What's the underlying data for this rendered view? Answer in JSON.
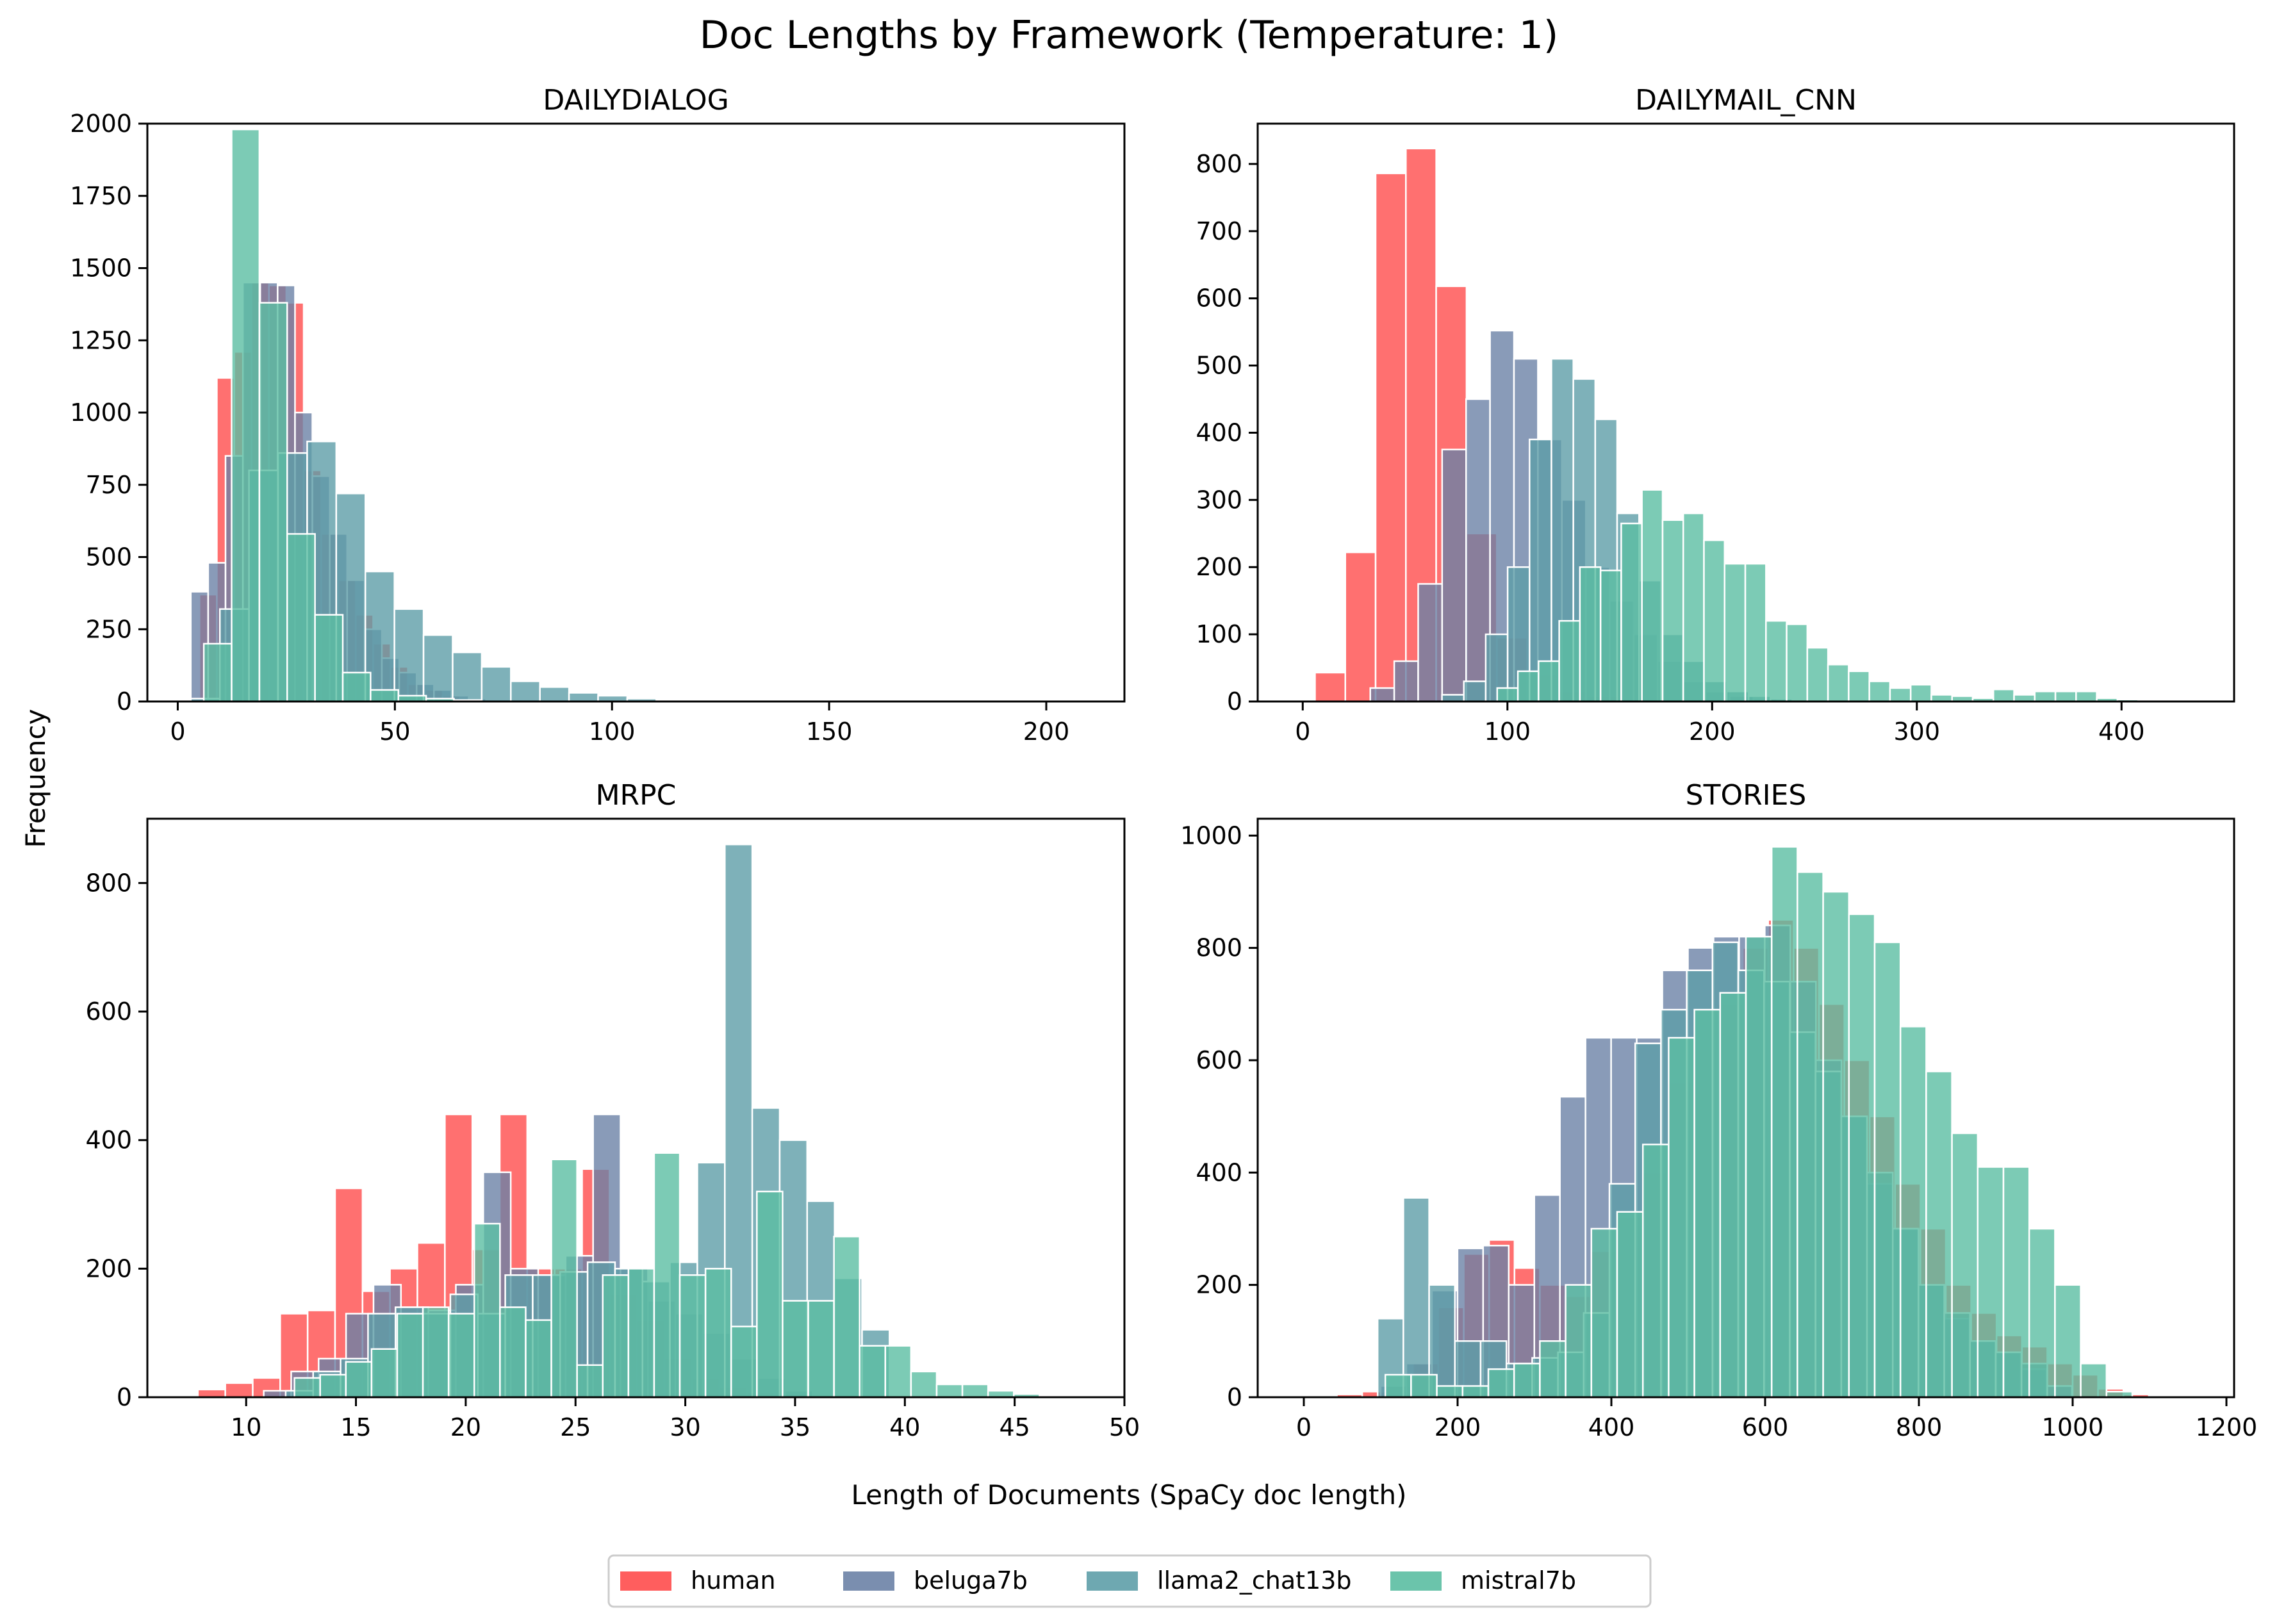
{
  "figure": {
    "title": "Doc Lengths by Framework (Temperature: 1)",
    "xlabel": "Length of Documents (SpaCy doc length)",
    "ylabel": "Frequency",
    "legend_position": "bottom-center"
  },
  "legend": [
    {
      "name": "human",
      "color": "#ff4c4c"
    },
    {
      "name": "beluga7b",
      "color": "#6b82a6"
    },
    {
      "name": "llama2_chat13b",
      "color": "#5e9ea8"
    },
    {
      "name": "mistral7b",
      "color": "#5bbea2"
    }
  ],
  "chart_data": [
    {
      "type": "bar",
      "title": "DAILYDIALOG",
      "xlim": [
        -7,
        218
      ],
      "ylim": [
        0,
        2000
      ],
      "xticks": [
        0,
        50,
        100,
        150,
        200
      ],
      "yticks": [
        0,
        250,
        500,
        750,
        1000,
        1250,
        1500,
        1750,
        2000
      ],
      "grid": false,
      "series": [
        {
          "name": "human",
          "color": "#ff4c4c",
          "x0": 1,
          "width": 4,
          "values": [
            0,
            370,
            1120,
            1210,
            1450,
            1440,
            1380,
            800,
            580,
            420,
            300,
            200,
            120,
            60,
            40,
            20,
            10,
            5
          ]
        },
        {
          "name": "beluga7b",
          "color": "#6b82a6",
          "x0": 3,
          "width": 4,
          "values": [
            380,
            480,
            850,
            1450,
            1450,
            1440,
            1000,
            780,
            580,
            420,
            250,
            150,
            100,
            60,
            40,
            20,
            10,
            5,
            3
          ]
        },
        {
          "name": "llama2_chat13b",
          "color": "#5e9ea8",
          "x0": 3,
          "width": 6.7,
          "values": [
            10,
            320,
            800,
            860,
            900,
            720,
            450,
            320,
            230,
            170,
            120,
            70,
            50,
            30,
            20,
            10
          ]
        },
        {
          "name": "mistral7b",
          "color": "#5bbea2",
          "x0": 6,
          "width": 6.4,
          "values": [
            200,
            1980,
            1380,
            580,
            300,
            100,
            40,
            20,
            10,
            5
          ]
        }
      ]
    },
    {
      "type": "bar",
      "title": "DAILYMAIL_CNN",
      "xlim": [
        -22,
        455
      ],
      "ylim": [
        0,
        860
      ],
      "xticks": [
        0,
        100,
        200,
        300,
        400
      ],
      "yticks": [
        0,
        100,
        200,
        300,
        400,
        500,
        600,
        700,
        800
      ],
      "grid": false,
      "series": [
        {
          "name": "human",
          "color": "#ff4c4c",
          "x0": 6,
          "width": 14.8,
          "values": [
            43,
            222,
            786,
            823,
            618,
            250,
            95,
            40,
            15,
            8,
            4,
            2
          ]
        },
        {
          "name": "beluga7b",
          "color": "#6b82a6",
          "x0": 33,
          "width": 11.7,
          "values": [
            20,
            60,
            175,
            375,
            450,
            552,
            510,
            390,
            300,
            200,
            150,
            100,
            60,
            30,
            15,
            8,
            4,
            2
          ]
        },
        {
          "name": "llama2_chat13b",
          "color": "#5e9ea8",
          "x0": 68,
          "width": 10.7,
          "values": [
            10,
            30,
            100,
            200,
            390,
            510,
            480,
            420,
            280,
            180,
            100,
            60,
            30,
            15,
            8,
            4,
            2
          ]
        },
        {
          "name": "mistral7b",
          "color": "#5bbea2",
          "x0": 95,
          "width": 10.1,
          "values": [
            20,
            45,
            60,
            120,
            200,
            195,
            265,
            315,
            270,
            280,
            240,
            205,
            205,
            120,
            115,
            80,
            55,
            45,
            30,
            20,
            25,
            10,
            8,
            5,
            18,
            10,
            15,
            15,
            15,
            5,
            3
          ]
        }
      ]
    },
    {
      "type": "bar",
      "title": "MRPC",
      "xlim": [
        5.5,
        50
      ],
      "ylim": [
        0,
        900
      ],
      "xticks": [
        10,
        15,
        20,
        25,
        30,
        35,
        40,
        45,
        50
      ],
      "yticks": [
        0,
        200,
        400,
        600,
        800
      ],
      "grid": false,
      "series": [
        {
          "name": "human",
          "color": "#ff4c4c",
          "x0": 7.8,
          "width": 1.25,
          "values": [
            12,
            22,
            30,
            130,
            135,
            325,
            165,
            200,
            240,
            440,
            230,
            440,
            200,
            200,
            355,
            160,
            120,
            60,
            30,
            15,
            8,
            4,
            2
          ]
        },
        {
          "name": "beluga7b",
          "color": "#6b82a6",
          "x0": 10.8,
          "width": 1.25,
          "values": [
            10,
            40,
            60,
            130,
            175,
            140,
            135,
            175,
            350,
            200,
            190,
            220,
            440,
            200,
            150,
            130,
            100,
            60,
            30,
            10
          ]
        },
        {
          "name": "llama2_chat13b",
          "color": "#5e9ea8",
          "x0": 11.8,
          "width": 1.25,
          "values": [
            10,
            40,
            60,
            130,
            140,
            130,
            160,
            130,
            190,
            190,
            195,
            210,
            200,
            180,
            210,
            365,
            860,
            450,
            400,
            305,
            185,
            105
          ]
        },
        {
          "name": "mistral7b",
          "color": "#5bbea2",
          "x0": 12.2,
          "width": 1.17,
          "values": [
            30,
            35,
            55,
            75,
            130,
            140,
            130,
            270,
            140,
            120,
            370,
            50,
            190,
            200,
            380,
            190,
            200,
            110,
            320,
            150,
            150,
            250,
            80,
            80,
            40,
            20,
            20,
            10,
            5
          ]
        }
      ]
    },
    {
      "type": "bar",
      "title": "STORIES",
      "xlim": [
        -60,
        1210
      ],
      "ylim": [
        0,
        1030
      ],
      "xticks": [
        0,
        200,
        400,
        600,
        800,
        1000,
        1200
      ],
      "yticks": [
        0,
        200,
        400,
        600,
        800,
        1000
      ],
      "grid": false,
      "series": [
        {
          "name": "human",
          "color": "#ff4c4c",
          "x0": 10,
          "width": 33,
          "values": [
            2,
            5,
            10,
            20,
            60,
            160,
            255,
            280,
            230,
            200,
            180,
            260,
            320,
            400,
            560,
            620,
            700,
            800,
            850,
            800,
            700,
            600,
            500,
            380,
            300,
            200,
            150,
            110,
            90,
            60,
            40,
            15,
            5
          ]
        },
        {
          "name": "beluga7b",
          "color": "#6b82a6",
          "x0": 100,
          "width": 33.3,
          "values": [
            20,
            60,
            190,
            265,
            270,
            200,
            360,
            535,
            640,
            640,
            640,
            760,
            800,
            820,
            820,
            840,
            740,
            600,
            500,
            380,
            300,
            200,
            140,
            100,
            80,
            50,
            20
          ]
        },
        {
          "name": "llama2_chat13b",
          "color": "#5e9ea8",
          "x0": 96,
          "width": 33.5,
          "values": [
            140,
            355,
            200,
            100,
            100,
            60,
            70,
            80,
            150,
            380,
            630,
            690,
            760,
            810,
            760,
            740,
            650,
            580,
            500,
            400,
            300,
            200,
            150,
            100,
            80,
            60
          ]
        },
        {
          "name": "mistral7b",
          "color": "#5bbea2",
          "x0": 106,
          "width": 33.5,
          "values": [
            40,
            40,
            20,
            20,
            50,
            60,
            100,
            200,
            300,
            330,
            450,
            640,
            690,
            720,
            820,
            980,
            935,
            900,
            860,
            810,
            660,
            580,
            470,
            410,
            410,
            300,
            200,
            60,
            10
          ]
        }
      ]
    }
  ]
}
